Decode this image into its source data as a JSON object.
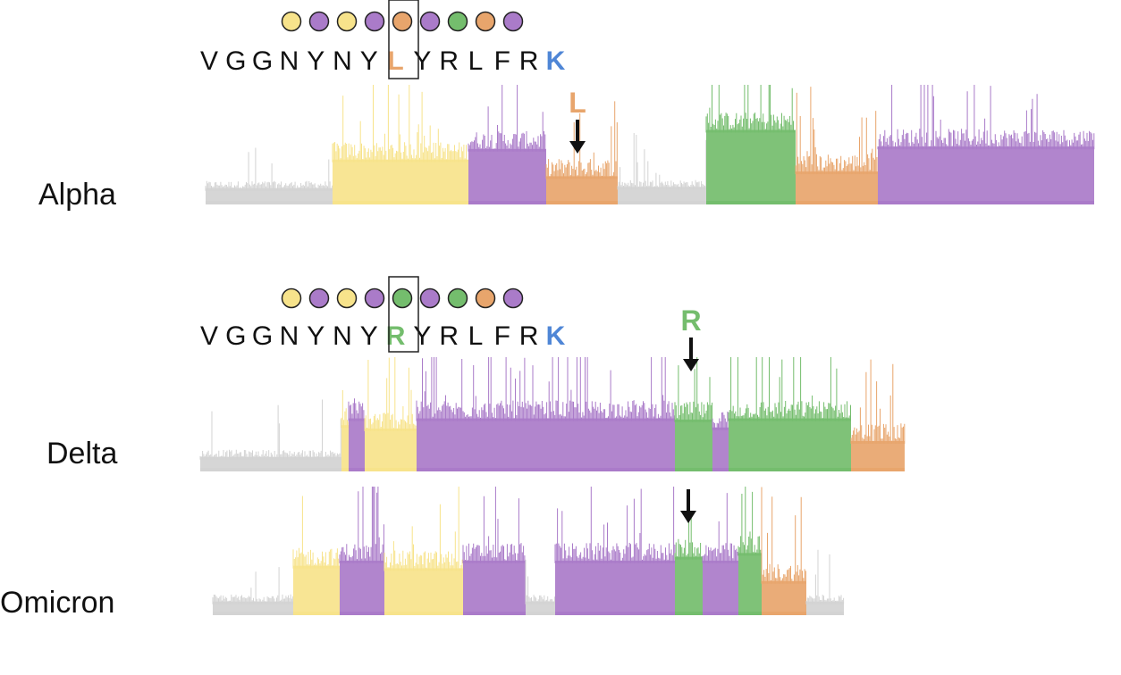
{
  "colors": {
    "gray": "#d3d3d3",
    "yellow": "#f7e38b",
    "purple": "#aa7bc9",
    "green": "#74bd6d",
    "orange": "#e8a56c",
    "blue_letter": "#4f86d6",
    "arrow": "#111111"
  },
  "panels": [
    {
      "variant": "Alpha",
      "sequence": [
        "V",
        "G",
        "G",
        "N",
        "Y",
        "N",
        "Y",
        "L",
        "Y",
        "R",
        "L",
        "F",
        "R",
        "K"
      ],
      "circle_classes": [
        "yellow",
        "purple",
        "yellow",
        "purple",
        "orange",
        "purple",
        "green",
        "orange",
        "purple"
      ],
      "boxed_residue": "L",
      "arrow_label": "L",
      "segments": [
        {
          "cls": "gray",
          "level": 0.13
        },
        {
          "cls": "yellow",
          "level": 0.37
        },
        {
          "cls": "purple",
          "level": 0.46
        },
        {
          "cls": "orange",
          "level": 0.23
        },
        {
          "cls": "gray",
          "level": 0.14
        },
        {
          "cls": "green",
          "level": 0.62
        },
        {
          "cls": "orange",
          "level": 0.27
        },
        {
          "cls": "purple",
          "level": 0.48
        }
      ]
    },
    {
      "variant": "Delta",
      "sequence": [
        "V",
        "G",
        "G",
        "N",
        "Y",
        "N",
        "Y",
        "R",
        "Y",
        "R",
        "L",
        "F",
        "R",
        "K"
      ],
      "circle_classes": [
        "yellow",
        "purple",
        "yellow",
        "purple",
        "green",
        "purple",
        "green",
        "orange",
        "purple"
      ],
      "boxed_residue": "R",
      "arrow_label": "R",
      "segments": [
        {
          "cls": "gray",
          "level": 0.12
        },
        {
          "cls": "yellow",
          "level": 0.4
        },
        {
          "cls": "purple",
          "level": 0.46
        },
        {
          "cls": "yellow",
          "level": 0.37
        },
        {
          "cls": "purple",
          "level": 0.46
        },
        {
          "cls": "green",
          "level": 0.45
        },
        {
          "cls": "purple",
          "level": 0.38
        },
        {
          "cls": "green",
          "level": 0.46
        },
        {
          "cls": "orange",
          "level": 0.26
        }
      ]
    },
    {
      "variant": "Omicron",
      "segments": [
        {
          "cls": "gray",
          "level": 0.1
        },
        {
          "cls": "yellow",
          "level": 0.38
        },
        {
          "cls": "purple",
          "level": 0.42
        },
        {
          "cls": "yellow",
          "level": 0.36
        },
        {
          "cls": "purple",
          "level": 0.42
        },
        {
          "cls": "gray",
          "level": 0.1
        },
        {
          "cls": "purple",
          "level": 0.42
        },
        {
          "cls": "green",
          "level": 0.45
        },
        {
          "cls": "purple",
          "level": 0.42
        },
        {
          "cls": "green",
          "level": 0.48
        },
        {
          "cls": "orange",
          "level": 0.26
        },
        {
          "cls": "gray",
          "level": 0.1
        }
      ]
    }
  ]
}
